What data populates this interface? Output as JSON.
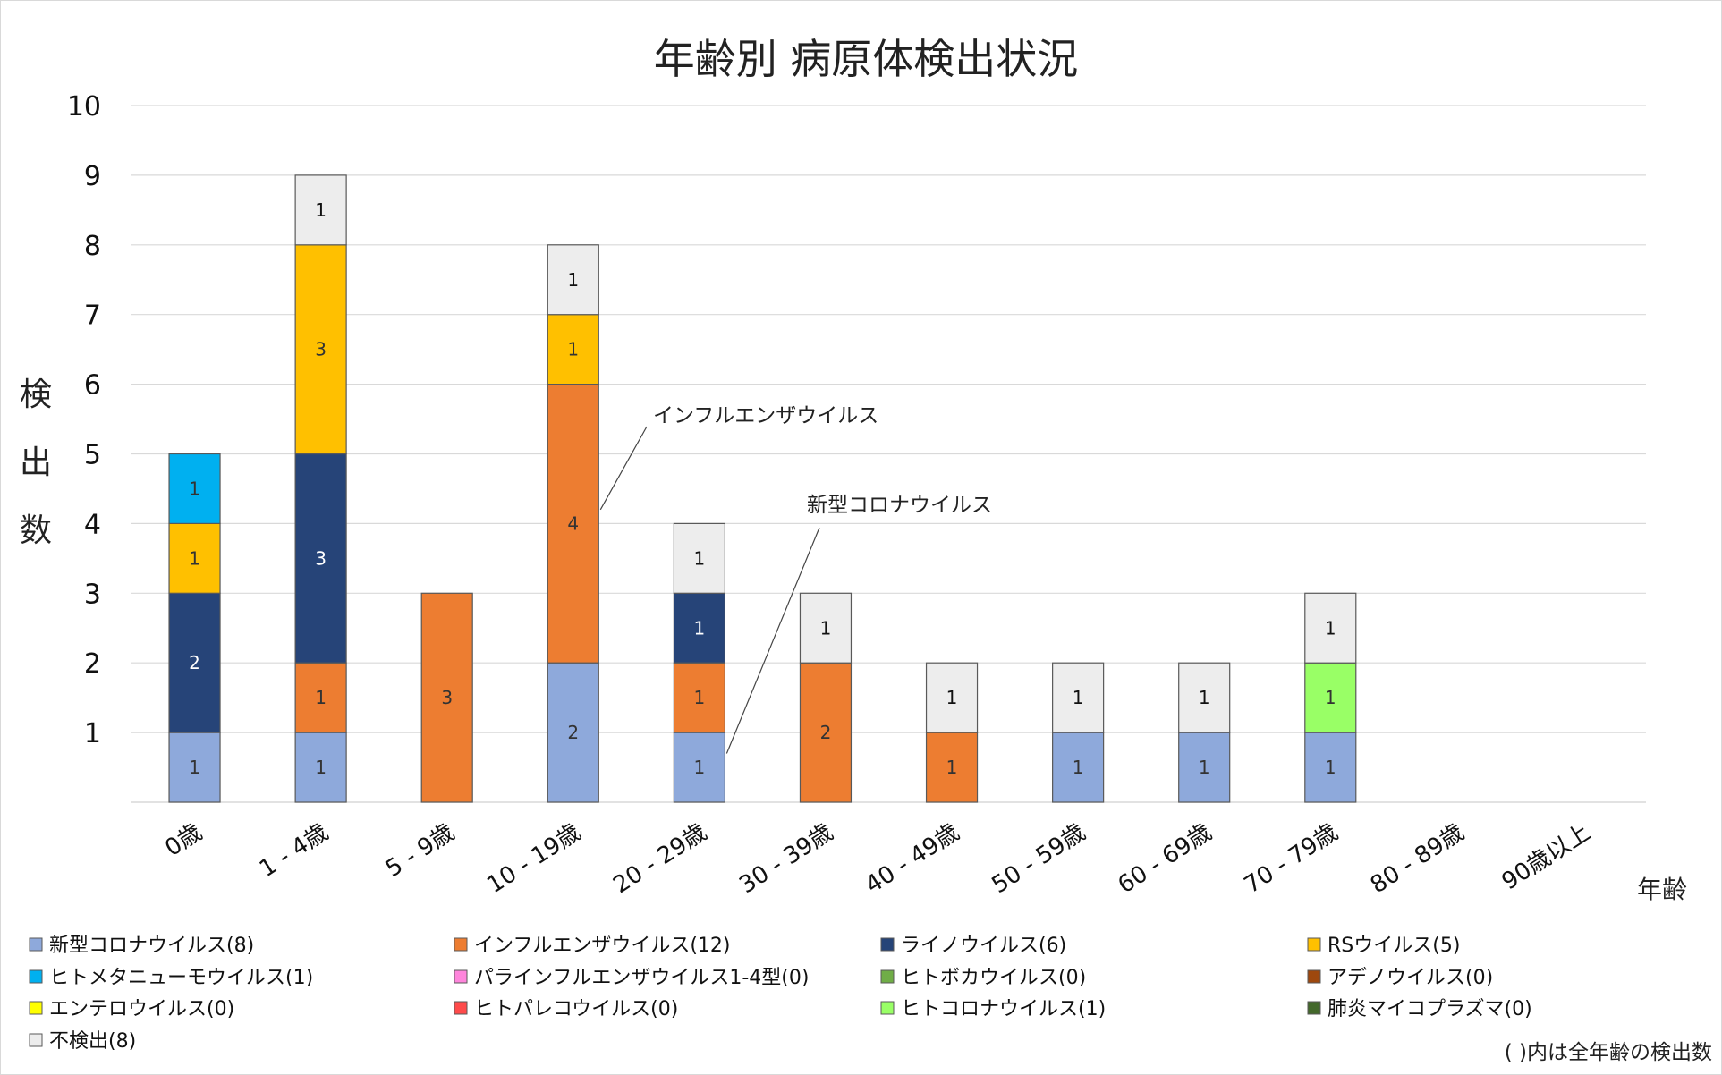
{
  "chart_data": {
    "type": "bar",
    "stacked": true,
    "title": "年齢別 病原体検出状況",
    "xlabel": "年齢",
    "ylabel": "検出数",
    "ylim": [
      0,
      10
    ],
    "yticks": [
      1,
      2,
      3,
      4,
      5,
      6,
      7,
      8,
      9,
      10
    ],
    "grid": true,
    "legend_position": "bottom",
    "categories": [
      "0歳",
      "1 - 4歳",
      "5 - 9歳",
      "10 - 19歳",
      "20 - 29歳",
      "30 - 39歳",
      "40 - 49歳",
      "50 - 59歳",
      "60 - 69歳",
      "70 - 79歳",
      "80 - 89歳",
      "90歳以上"
    ],
    "series": [
      {
        "name": "新型コロナウイルス",
        "total": 8,
        "color": "#8EA9DB",
        "label_color": "#333333",
        "values": [
          1,
          1,
          0,
          2,
          1,
          0,
          0,
          1,
          1,
          1,
          0,
          0
        ]
      },
      {
        "name": "インフルエンザウイルス",
        "total": 12,
        "color": "#ED7D31",
        "label_color": "#333333",
        "values": [
          0,
          1,
          3,
          4,
          1,
          2,
          1,
          0,
          0,
          0,
          0,
          0
        ]
      },
      {
        "name": "ライノウイルス",
        "total": 6,
        "color": "#264478",
        "label_color": "#ffffff",
        "values": [
          2,
          3,
          0,
          0,
          1,
          0,
          0,
          0,
          0,
          0,
          0,
          0
        ]
      },
      {
        "name": "RSウイルス",
        "total": 5,
        "color": "#FFC000",
        "label_color": "#333333",
        "values": [
          1,
          3,
          0,
          1,
          0,
          0,
          0,
          0,
          0,
          0,
          0,
          0
        ]
      },
      {
        "name": "ヒトメタニューモウイルス",
        "total": 1,
        "color": "#00B0F0",
        "label_color": "#333333",
        "values": [
          1,
          0,
          0,
          0,
          0,
          0,
          0,
          0,
          0,
          0,
          0,
          0
        ]
      },
      {
        "name": "パラインフルエンザウイルス1-4型",
        "total": 0,
        "color": "#FF85DC",
        "label_color": "#333333",
        "values": [
          0,
          0,
          0,
          0,
          0,
          0,
          0,
          0,
          0,
          0,
          0,
          0
        ]
      },
      {
        "name": "ヒトボカウイルス",
        "total": 0,
        "color": "#70AD47",
        "label_color": "#333333",
        "values": [
          0,
          0,
          0,
          0,
          0,
          0,
          0,
          0,
          0,
          0,
          0,
          0
        ]
      },
      {
        "name": "アデノウイルス",
        "total": 0,
        "color": "#9E480E",
        "label_color": "#ffffff",
        "values": [
          0,
          0,
          0,
          0,
          0,
          0,
          0,
          0,
          0,
          0,
          0,
          0
        ]
      },
      {
        "name": "エンテロウイルス",
        "total": 0,
        "color": "#FFFF00",
        "label_color": "#333333",
        "values": [
          0,
          0,
          0,
          0,
          0,
          0,
          0,
          0,
          0,
          0,
          0,
          0
        ]
      },
      {
        "name": "ヒトパレコウイルス",
        "total": 0,
        "color": "#FF4B4B",
        "label_color": "#333333",
        "values": [
          0,
          0,
          0,
          0,
          0,
          0,
          0,
          0,
          0,
          0,
          0,
          0
        ]
      },
      {
        "name": "ヒトコロナウイルス",
        "total": 1,
        "color": "#99FF66",
        "label_color": "#333333",
        "values": [
          0,
          0,
          0,
          0,
          0,
          0,
          0,
          0,
          0,
          1,
          0,
          0
        ]
      },
      {
        "name": "肺炎マイコプラズマ",
        "total": 0,
        "color": "#43682B",
        "label_color": "#ffffff",
        "values": [
          0,
          0,
          0,
          0,
          0,
          0,
          0,
          0,
          0,
          0,
          0,
          0
        ]
      },
      {
        "name": "不検出",
        "total": 8,
        "color": "#EDEDED",
        "label_color": "#111111",
        "values": [
          0,
          1,
          0,
          1,
          1,
          1,
          1,
          1,
          1,
          1,
          0,
          0
        ]
      }
    ],
    "legend_order": [
      0,
      1,
      2,
      3,
      4,
      5,
      6,
      7,
      8,
      9,
      10,
      11,
      12
    ],
    "legend_labels": [
      "新型コロナウイルス(8)",
      "インフルエンザウイルス(12)",
      "ライノウイルス(6)",
      "RSウイルス(5)",
      "ヒトメタニューモウイルス(1)",
      "パラインフルエンザウイルス1-4型(0)",
      "ヒトボカウイルス(0)",
      "アデノウイルス(0)",
      "エンテロウイルス(0)",
      "ヒトパレコウイルス(0)",
      "ヒトコロナウイルス(1)",
      "肺炎マイコプラズマ(0)",
      "不検出(8)"
    ],
    "annotations": [
      {
        "text": "インフルエンザウイルス",
        "series": "インフルエンザウイルス",
        "category": "10 - 19歳"
      },
      {
        "text": "新型コロナウイルス",
        "series": "新型コロナウイルス",
        "category": "20 - 29歳"
      }
    ],
    "note": "( )内は全年齢の検出数"
  }
}
